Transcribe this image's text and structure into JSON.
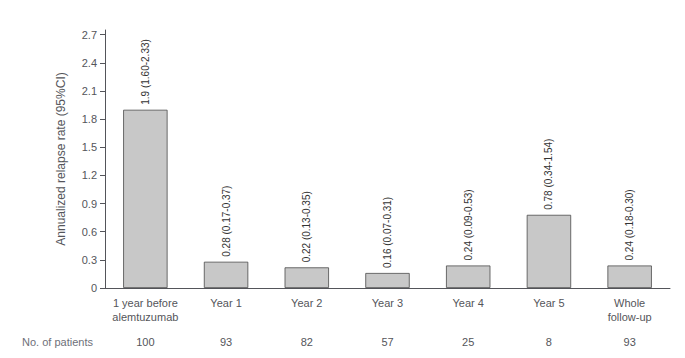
{
  "chart_data": {
    "type": "bar",
    "categories": [
      "1 year before\nalemtuzumab",
      "Year 1",
      "Year 2",
      "Year 3",
      "Year 4",
      "Year 5",
      "Whole\nfollow-up"
    ],
    "values": [
      1.9,
      0.28,
      0.22,
      0.16,
      0.24,
      0.78,
      0.24
    ],
    "value_labels": [
      "1.9 (1.60-2.33)",
      "0.28 (0.17-0.37)",
      "0.22 (0.13-0.35)",
      "0.16 (0.07-0.31)",
      "0.24 (0.09-0.53)",
      "0.78 (0.34-1.54)",
      "0.24 (0.18-0.30)"
    ],
    "data_labels": true,
    "n_patients": [
      100,
      93,
      82,
      57,
      25,
      8,
      93
    ],
    "n_patients_label": "No. of patients",
    "color": "#c8c8c8",
    "ylabel": "Annualized relapse rate (95%CI)",
    "ylim": [
      0,
      2.75
    ],
    "yticks": [
      0,
      0.3,
      0.6,
      0.9,
      1.2,
      1.5,
      1.8,
      2.1,
      2.4,
      2.7
    ],
    "grid": false
  }
}
